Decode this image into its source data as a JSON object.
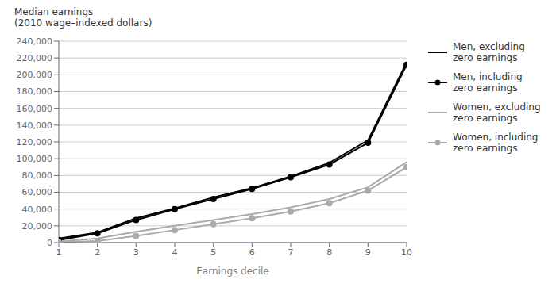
{
  "chart_data": {
    "type": "line",
    "ylabel": "Median earnings\n(2010 wage–indexed dollars)",
    "xlabel": "Earnings decile",
    "x": [
      1,
      2,
      3,
      4,
      5,
      6,
      7,
      8,
      9,
      10
    ],
    "xlim": [
      1,
      10
    ],
    "xticks": [
      1,
      2,
      3,
      4,
      5,
      6,
      7,
      8,
      9,
      10
    ],
    "ylim": [
      0,
      240000
    ],
    "yticks": [
      0,
      {
        "value": 20000,
        "label": "20,000"
      },
      {
        "value": 40000,
        "label": "40,000"
      },
      {
        "value": 60000,
        "label": "60,000"
      },
      {
        "value": 80000,
        "label": "80,000"
      },
      {
        "value": 100000,
        "label": "100,000"
      },
      {
        "value": 120000,
        "label": "120,000"
      },
      {
        "value": 140000,
        "label": "140,000"
      },
      {
        "value": 160000,
        "label": "160,000"
      },
      {
        "value": 180000,
        "label": "180,000"
      },
      {
        "value": 200000,
        "label": "200,000"
      },
      {
        "value": 220000,
        "label": "220,000"
      },
      {
        "value": 240000,
        "label": "240,000"
      }
    ],
    "grid": "y",
    "legend": "right",
    "series": [
      {
        "name": "Men, excluding\nzero earnings",
        "color": "#000000",
        "marker": "none",
        "values": [
          5000,
          12000,
          29000,
          41000,
          54000,
          65000,
          79000,
          95000,
          122000,
          215000
        ]
      },
      {
        "name": "Men, including\nzero earnings",
        "color": "#000000",
        "marker": "circle",
        "values": [
          3000,
          11000,
          27000,
          40000,
          52000,
          64000,
          78000,
          93000,
          119000,
          212000
        ]
      },
      {
        "name": "Women, excluding\nzero earnings",
        "color": "#aaaaaa",
        "marker": "none",
        "values": [
          1500,
          5000,
          13000,
          20000,
          27000,
          34000,
          42000,
          52000,
          66000,
          96000
        ]
      },
      {
        "name": "Women, including\nzero earnings",
        "color": "#aaaaaa",
        "marker": "circle",
        "values": [
          500,
          2000,
          8000,
          15000,
          22000,
          29000,
          37000,
          47000,
          62000,
          90000
        ]
      }
    ]
  }
}
